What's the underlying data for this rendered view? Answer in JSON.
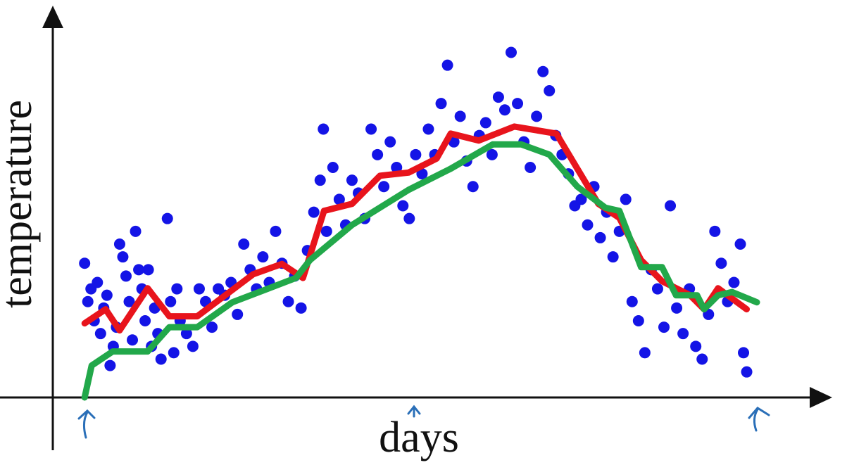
{
  "chart_data": {
    "type": "scatter",
    "xlabel": "days",
    "ylabel": "temperature",
    "xlim": [
      0,
      120
    ],
    "ylim": [
      0,
      60
    ],
    "series": [
      {
        "type": "scatter",
        "color": "#1414e6",
        "x": [
          5,
          5.5,
          6,
          6.5,
          7,
          7.5,
          8,
          8.5,
          9,
          9.5,
          10,
          10.5,
          11,
          11.5,
          12,
          12.5,
          13,
          13.5,
          14,
          14.5,
          15,
          15.5,
          16,
          16.5,
          17,
          18,
          18.5,
          19,
          19.5,
          20,
          21,
          22,
          23,
          24,
          25,
          26,
          27,
          28,
          29,
          30,
          31,
          32,
          33,
          34,
          35,
          36,
          37,
          38,
          39,
          40,
          41,
          42,
          42.5,
          43,
          44,
          45,
          46,
          47,
          48,
          49,
          50,
          51,
          52,
          53,
          54,
          55,
          56,
          57,
          58,
          59,
          60,
          61,
          62,
          63,
          64,
          65,
          66,
          67,
          68,
          69,
          70,
          71,
          72,
          73,
          74,
          75,
          76,
          77,
          78,
          79,
          80,
          81,
          82,
          83,
          84,
          85,
          86,
          87,
          88,
          89,
          90,
          91,
          92,
          93,
          94,
          95,
          96,
          97,
          98,
          99,
          100,
          101,
          102,
          103,
          104,
          105,
          106,
          107,
          108,
          108.5,
          109
        ],
        "values": [
          21,
          15,
          17,
          12,
          18,
          10,
          14,
          16,
          5,
          8,
          11,
          24,
          22,
          19,
          15,
          9,
          26,
          20,
          17,
          12,
          20,
          8,
          14,
          10,
          6,
          28,
          15,
          7,
          17,
          12,
          10,
          8,
          17,
          15,
          11,
          17,
          16,
          18,
          13,
          24,
          20,
          17,
          22,
          18,
          26,
          21,
          15,
          19,
          14,
          23,
          29,
          34,
          42,
          26,
          36,
          31,
          27,
          34,
          32,
          28,
          42,
          38,
          33,
          40,
          36,
          30,
          28,
          38,
          35,
          42,
          38,
          46,
          52,
          40,
          44,
          37,
          33,
          41,
          43,
          38,
          47,
          45,
          54,
          46,
          40,
          36,
          44,
          51,
          48,
          41,
          38,
          35,
          30,
          31,
          27,
          33,
          25,
          29,
          22,
          26,
          31,
          15,
          12,
          7,
          20,
          17,
          11,
          30,
          14,
          10,
          17,
          8,
          6,
          13,
          26,
          21,
          15,
          18,
          24,
          7,
          4
        ]
      },
      {
        "type": "line",
        "color": "#e8141c",
        "x": [
          5.0,
          8.3,
          10.5,
          14.9,
          18.3,
          22.7,
          27.1,
          31.5,
          36.0,
          39.3,
          42.6,
          47.0,
          51.4,
          55.9,
          60.3,
          62.5,
          66.9,
          72.5,
          79.1,
          82.4,
          85.7,
          89.0,
          92.4,
          95.7,
          100.1,
          102.3,
          104.5,
          109.0
        ],
        "values": [
          11.6,
          13.8,
          10.5,
          17.1,
          12.7,
          12.7,
          16.0,
          19.3,
          20.9,
          18.7,
          29.2,
          30.3,
          34.7,
          35.2,
          37.4,
          41.3,
          40.2,
          42.4,
          41.3,
          35.8,
          30.3,
          28.1,
          21.5,
          18.2,
          16.0,
          13.8,
          17.1,
          13.8
        ]
      },
      {
        "type": "line",
        "color": "#22a84a",
        "x": [
          5.0,
          6.1,
          9.4,
          14.9,
          18.3,
          22.7,
          28.2,
          38.2,
          40.4,
          47.0,
          55.9,
          62.5,
          69.1,
          73.6,
          78.0,
          82.4,
          86.8,
          89.0,
          92.4,
          95.7,
          97.9,
          101.2,
          102.3,
          104.5,
          106.7,
          110.6
        ],
        "values": [
          0,
          5.0,
          7.2,
          7.2,
          11.0,
          11.0,
          14.9,
          18.7,
          21.5,
          27.0,
          32.5,
          35.8,
          39.6,
          39.6,
          38.0,
          33.0,
          29.7,
          29.2,
          20.4,
          20.4,
          16.0,
          16.0,
          13.8,
          16.0,
          16.5,
          14.9
        ]
      }
    ]
  }
}
